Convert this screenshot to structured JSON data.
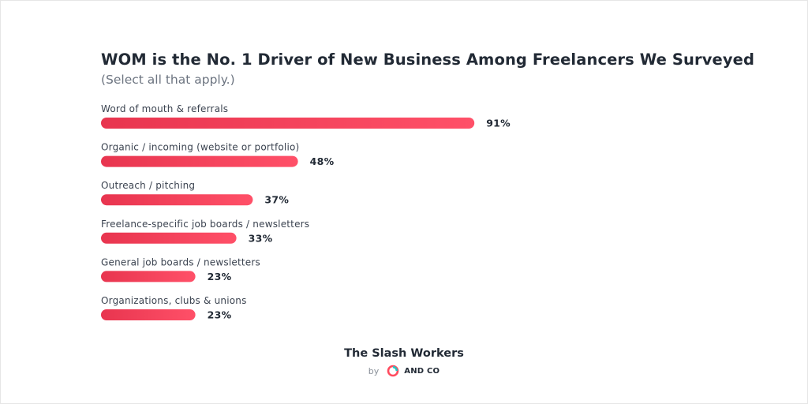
{
  "title": "WOM is the No. 1 Driver of New Business Among Freelancers We Surveyed",
  "subtitle": "(Select all that apply.)",
  "footer": {
    "brand": "The Slash Workers",
    "by": "by",
    "logo_text": "AND CO",
    "logo_icon": "and-co-logo"
  },
  "colors": {
    "bar_start": "#e8354f",
    "bar_end": "#ff5068",
    "logo_teal": "#26c6c3",
    "logo_red": "#ff4b5e"
  },
  "chart_data": {
    "type": "bar",
    "orientation": "horizontal",
    "title": "WOM is the No. 1 Driver of New Business Among Freelancers We Surveyed",
    "subtitle": "(Select all that apply.)",
    "categories": [
      "Word of mouth & referrals",
      "Organic / incoming (website or portfolio)",
      "Outreach / pitching",
      "Freelance-specific job boards / newsletters",
      "General job boards / newsletters",
      "Organizations, clubs & unions"
    ],
    "values": [
      91,
      48,
      37,
      33,
      23,
      23
    ],
    "value_labels": [
      "91%",
      "48%",
      "37%",
      "33%",
      "23%",
      "23%"
    ],
    "unit": "%",
    "xlim": [
      0,
      100
    ],
    "grid": false,
    "legend": "none"
  }
}
